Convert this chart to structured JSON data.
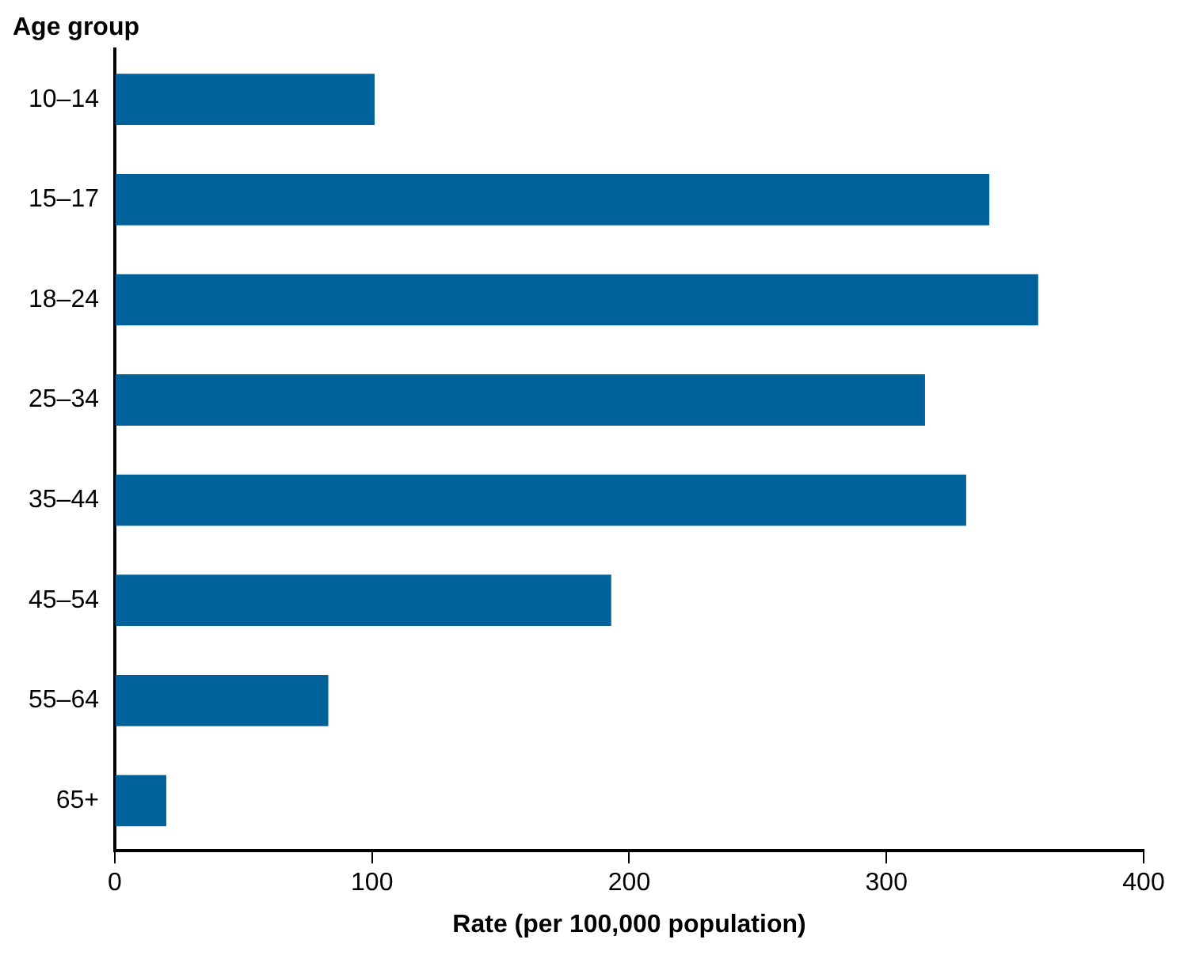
{
  "chart_data": {
    "type": "bar",
    "orientation": "horizontal",
    "title": "Age group",
    "xlabel": "Rate (per 100,000 population)",
    "categories": [
      "10–14",
      "15–17",
      "18–24",
      "25–34",
      "35–44",
      "45–54",
      "55–64",
      "65+"
    ],
    "values": [
      101,
      340,
      359,
      315,
      331,
      193,
      83,
      20
    ],
    "color": "#00629b",
    "xlim": [
      0,
      400
    ],
    "xticks": [
      0,
      100,
      200,
      300,
      400
    ],
    "grid": false,
    "legend": false
  }
}
